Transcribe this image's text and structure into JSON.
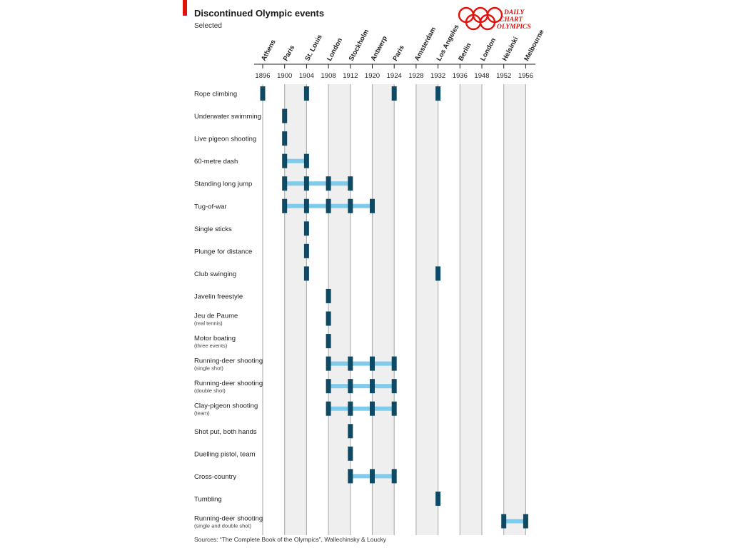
{
  "title": "Discontinued Olympic events",
  "subtitle": "Selected",
  "logo": {
    "line1": "DAILY",
    "line2": "CHART",
    "line3": "OLYMPICS",
    "icon": "olympic-rings-icon"
  },
  "source": "Sources: “The Complete Book of the Olympics”, Wallechinsky & Loucky",
  "colors": {
    "accent": "#e3120b",
    "marker": "#0e4a63",
    "connector": "#7fcbeb",
    "band": "#efefef",
    "line": "#b3b3b3"
  },
  "chart_data": {
    "type": "timeline",
    "games": [
      {
        "year": 1896,
        "city": "Athens"
      },
      {
        "year": 1900,
        "city": "Paris"
      },
      {
        "year": 1904,
        "city": "St. Louis"
      },
      {
        "year": 1908,
        "city": "London"
      },
      {
        "year": 1912,
        "city": "Stockholm"
      },
      {
        "year": 1920,
        "city": "Antwerp"
      },
      {
        "year": 1924,
        "city": "Paris"
      },
      {
        "year": 1928,
        "city": "Amsterdam"
      },
      {
        "year": 1932,
        "city": "Los Angeles"
      },
      {
        "year": 1936,
        "city": "Berlin"
      },
      {
        "year": 1948,
        "city": "London"
      },
      {
        "year": 1952,
        "city": "Helsinki"
      },
      {
        "year": 1956,
        "city": "Melbourne"
      }
    ],
    "events": [
      {
        "name": "Rope climbing",
        "sub": "",
        "years": [
          1896,
          1904,
          1924,
          1932
        ],
        "segments": []
      },
      {
        "name": "Underwater swimming",
        "sub": "",
        "years": [
          1900
        ],
        "segments": []
      },
      {
        "name": "Live pigeon shooting",
        "sub": "",
        "years": [
          1900
        ],
        "segments": []
      },
      {
        "name": "60-metre dash",
        "sub": "",
        "years": [
          1900,
          1904
        ],
        "segments": [
          [
            1900,
            1904
          ]
        ]
      },
      {
        "name": "Standing long jump",
        "sub": "",
        "years": [
          1900,
          1904,
          1908,
          1912
        ],
        "segments": [
          [
            1900,
            1912
          ]
        ]
      },
      {
        "name": "Tug-of-war",
        "sub": "",
        "years": [
          1900,
          1904,
          1908,
          1912,
          1920
        ],
        "segments": [
          [
            1900,
            1920
          ]
        ]
      },
      {
        "name": "Single sticks",
        "sub": "",
        "years": [
          1904
        ],
        "segments": []
      },
      {
        "name": "Plunge for distance",
        "sub": "",
        "years": [
          1904
        ],
        "segments": []
      },
      {
        "name": "Club swinging",
        "sub": "",
        "years": [
          1904,
          1932
        ],
        "segments": []
      },
      {
        "name": "Javelin freestyle",
        "sub": "",
        "years": [
          1908
        ],
        "segments": []
      },
      {
        "name": "Jeu de Paume",
        "sub": "(real tennis)",
        "years": [
          1908
        ],
        "segments": []
      },
      {
        "name": "Motor boating",
        "sub": "(three events)",
        "years": [
          1908
        ],
        "segments": []
      },
      {
        "name": "Running-deer shooting",
        "sub": "(single shot)",
        "years": [
          1908,
          1912,
          1920,
          1924
        ],
        "segments": [
          [
            1908,
            1924
          ]
        ]
      },
      {
        "name": "Running-deer shooting",
        "sub": "(double shot)",
        "years": [
          1908,
          1912,
          1920,
          1924
        ],
        "segments": [
          [
            1908,
            1924
          ]
        ]
      },
      {
        "name": "Clay-pigeon shooting",
        "sub": "(team)",
        "years": [
          1908,
          1912,
          1920,
          1924
        ],
        "segments": [
          [
            1908,
            1924
          ]
        ]
      },
      {
        "name": "Shot put, both hands",
        "sub": "",
        "years": [
          1912
        ],
        "segments": []
      },
      {
        "name": "Duelling pistol, team",
        "sub": "",
        "years": [
          1912
        ],
        "segments": []
      },
      {
        "name": "Cross-country",
        "sub": "",
        "years": [
          1912,
          1920,
          1924
        ],
        "segments": [
          [
            1912,
            1924
          ]
        ]
      },
      {
        "name": "Tumbling",
        "sub": "",
        "years": [
          1932
        ],
        "segments": []
      },
      {
        "name": "Running-deer shooting",
        "sub": "(single and double shot)",
        "years": [
          1952,
          1956
        ],
        "segments": [
          [
            1952,
            1956
          ]
        ]
      }
    ]
  }
}
